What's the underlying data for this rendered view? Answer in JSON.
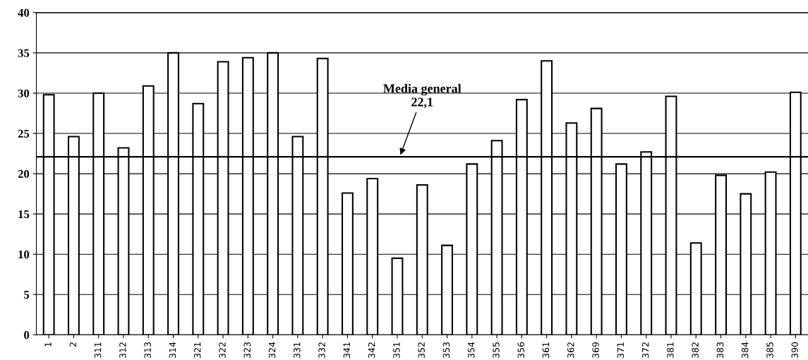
{
  "chart_data": {
    "type": "bar",
    "categories": [
      "1",
      "2",
      "311",
      "312",
      "313",
      "314",
      "321",
      "322",
      "323",
      "324",
      "331",
      "332",
      "341",
      "342",
      "351",
      "352",
      "353",
      "354",
      "355",
      "356",
      "361",
      "362",
      "369",
      "371",
      "372",
      "381",
      "382",
      "383",
      "384",
      "385",
      "390"
    ],
    "values": [
      29.8,
      24.6,
      30.0,
      23.2,
      30.9,
      35.0,
      28.7,
      33.9,
      34.4,
      35.0,
      24.6,
      34.3,
      17.6,
      19.4,
      9.5,
      18.6,
      11.1,
      21.2,
      24.1,
      29.2,
      34.0,
      26.3,
      28.1,
      21.2,
      22.7,
      29.6,
      11.4,
      19.8,
      17.5,
      20.2,
      30.1
    ],
    "color": "#ffffff",
    "ylim": [
      0,
      40
    ],
    "yticks": [
      0,
      5,
      10,
      15,
      20,
      25,
      30,
      35,
      40
    ],
    "grid": "y",
    "legend": false,
    "ref_lines": [
      {
        "axis": "y",
        "value": 22.1,
        "label": "Media general\n22,1",
        "color": "#000000"
      }
    ]
  }
}
